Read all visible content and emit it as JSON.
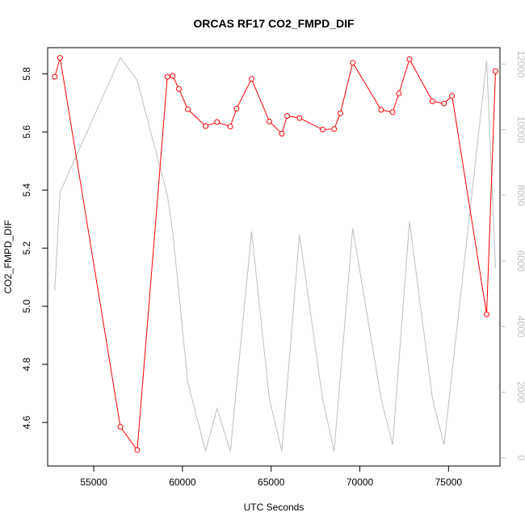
{
  "chart_data": {
    "type": "line",
    "title": "ORCAS RF17 CO2_FMPD_DIF",
    "xlabel": "UTC Seconds",
    "ylabel": "CO2_FMPD_DIF",
    "xlim": [
      52400,
      77900
    ],
    "ylim": [
      4.45,
      5.89
    ],
    "y2lim": [
      -250,
      12500
    ],
    "x_ticks": [
      55000,
      60000,
      65000,
      70000,
      75000
    ],
    "x_tick_labels": [
      "55000",
      "60000",
      "65000",
      "70000",
      "75000"
    ],
    "y_ticks": [
      4.6,
      4.8,
      5.0,
      5.2,
      5.4,
      5.6,
      5.8
    ],
    "y_tick_labels": [
      "4.6",
      "4.8",
      "5.0",
      "5.2",
      "5.4",
      "5.6",
      "5.8"
    ],
    "y2_ticks": [
      0,
      2000,
      4000,
      6000,
      8000,
      10000,
      12000
    ],
    "y2_tick_labels": [
      "0",
      "2000",
      "4000",
      "6000",
      "8000",
      "10000",
      "12000"
    ],
    "grid": false,
    "series": [
      {
        "color": "#ff0000",
        "axis": "left",
        "markers": "open-circle",
        "x": [
          52800,
          53100,
          56500,
          57450,
          59150,
          59450,
          59800,
          60300,
          61300,
          61950,
          62700,
          63050,
          63900,
          64900,
          65600,
          65900,
          66600,
          67900,
          68550,
          68900,
          69600,
          71200,
          71850,
          72200,
          72800,
          74100,
          74750,
          75200,
          77150,
          77650
        ],
        "values": [
          5.79,
          5.855,
          4.585,
          4.505,
          5.79,
          5.793,
          5.748,
          5.678,
          5.62,
          5.634,
          5.618,
          5.68,
          5.782,
          5.636,
          5.594,
          5.655,
          5.648,
          5.608,
          5.61,
          5.664,
          5.838,
          5.676,
          5.668,
          5.732,
          5.85,
          5.705,
          5.698,
          5.724,
          4.972,
          5.809
        ]
      },
      {
        "color": "#bebebe",
        "axis": "right",
        "markers": "none",
        "x": [
          52800,
          53100,
          56500,
          57450,
          59150,
          59450,
          60300,
          61300,
          61950,
          62700,
          63900,
          64900,
          65600,
          66600,
          67900,
          68550,
          69600,
          71200,
          71850,
          72800,
          74100,
          74750,
          77150,
          77650
        ],
        "values": [
          5100,
          8100,
          12200,
          11500,
          8000,
          6900,
          2300,
          200,
          1500,
          200,
          6900,
          1800,
          200,
          6800,
          1800,
          200,
          7000,
          1800,
          400,
          7200,
          1800,
          400,
          12100,
          5800
        ]
      }
    ]
  }
}
